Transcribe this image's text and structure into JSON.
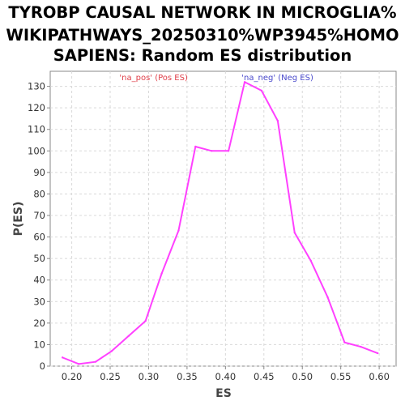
{
  "chart_data": {
    "type": "line",
    "title_lines": [
      "TYROBP CAUSAL NETWORK IN MICROGLIA%",
      "WIKIPATHWAYS_20250310%WP3945%HOMO",
      "SAPIENS: Random ES distribution"
    ],
    "xlabel": "ES",
    "ylabel": "P(ES)",
    "xlim": [
      0.172,
      0.622
    ],
    "ylim": [
      0,
      137
    ],
    "x_ticks": [
      0.2,
      0.25,
      0.3,
      0.35,
      0.4,
      0.45,
      0.5,
      0.55,
      0.6
    ],
    "x_tick_labels": [
      "0.20",
      "0.25",
      "0.30",
      "0.35",
      "0.40",
      "0.45",
      "0.50",
      "0.55",
      "0.60"
    ],
    "y_ticks": [
      0,
      10,
      20,
      30,
      40,
      50,
      60,
      70,
      80,
      90,
      100,
      110,
      120,
      130
    ],
    "y_tick_labels": [
      "0",
      "10",
      "20",
      "30",
      "40",
      "50",
      "60",
      "70",
      "80",
      "90",
      "100",
      "110",
      "120",
      "130"
    ],
    "grid": true,
    "annotations": [
      {
        "text": "'na_pos' (Pos ES)",
        "color": "#e0404a",
        "x": 0.262
      },
      {
        "text": "'na_neg' (Neg ES)",
        "color": "#4a4acc",
        "x": 0.421
      }
    ],
    "series": [
      {
        "color": "#ff40ff",
        "x": [
          0.188,
          0.209,
          0.231,
          0.252,
          0.274,
          0.296,
          0.317,
          0.339,
          0.361,
          0.382,
          0.404,
          0.425,
          0.447,
          0.468,
          0.49,
          0.511,
          0.533,
          0.555,
          0.576,
          0.598
        ],
        "y": [
          4,
          1,
          2,
          7,
          14,
          21,
          43,
          63,
          102,
          100,
          100,
          132,
          128,
          114,
          62,
          49,
          32,
          11,
          9,
          6
        ]
      }
    ]
  }
}
